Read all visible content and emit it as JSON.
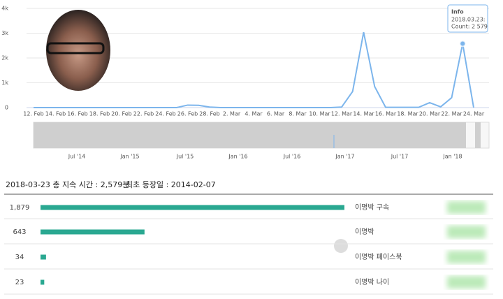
{
  "chart_data": [
    {
      "type": "line",
      "categories": [
        "12. Feb",
        null,
        "14. Feb",
        null,
        "16. Feb",
        null,
        "18. Feb",
        null,
        "20. Feb",
        null,
        "22. Feb",
        null,
        "24. Feb",
        null,
        "26. Feb",
        null,
        "28. Feb",
        null,
        "2. Mar",
        null,
        "4. Mar",
        null,
        "6. Mar",
        null,
        "8. Mar",
        null,
        "10. Mar",
        null,
        "12. Mar",
        null,
        "14. Mar",
        null,
        "16. Mar",
        null,
        "18. Mar",
        null,
        "20. Mar",
        null,
        "22. Mar",
        null,
        "24. Mar"
      ],
      "series": [
        {
          "name": "Count",
          "color": "#7cb5ec",
          "values": [
            0,
            0,
            0,
            0,
            0,
            0,
            0,
            0,
            0,
            0,
            0,
            0,
            0,
            0,
            100,
            90,
            20,
            0,
            0,
            0,
            0,
            0,
            0,
            0,
            0,
            0,
            0,
            0,
            20,
            650,
            3040,
            850,
            10,
            10,
            10,
            10,
            200,
            30,
            400,
            2579,
            0
          ]
        }
      ],
      "ylim": [
        0,
        4000
      ],
      "yticks": [
        {
          "value": 0,
          "label": "0"
        },
        {
          "value": 1000,
          "label": "1k"
        },
        {
          "value": 2000,
          "label": "2k"
        },
        {
          "value": 3000,
          "label": "3k"
        },
        {
          "value": 4000,
          "label": "4k"
        }
      ],
      "grid": true,
      "tooltip": {
        "title": "Info",
        "date": "2018.03.23:",
        "count": "Count: 2 579"
      },
      "navigator_labels": [
        "Jul '14",
        "Jan '15",
        "Jul '15",
        "Jan '16",
        "Jul '16",
        "Jan '17",
        "Jul '17",
        "Jan '18"
      ]
    },
    {
      "type": "hbar",
      "categories": [
        "이명박 구속",
        "이명박",
        "이명박 페이스북",
        "이명박 나이"
      ],
      "values": [
        1879,
        643,
        34,
        23
      ],
      "value_labels": [
        "1,879",
        "643",
        "34",
        "23"
      ],
      "color": "#2aa891"
    }
  ],
  "summary": {
    "duration": "2018-03-23 총 지속 시간 : 2,579분",
    "first": "최초 등장일 : 2014-02-07"
  }
}
